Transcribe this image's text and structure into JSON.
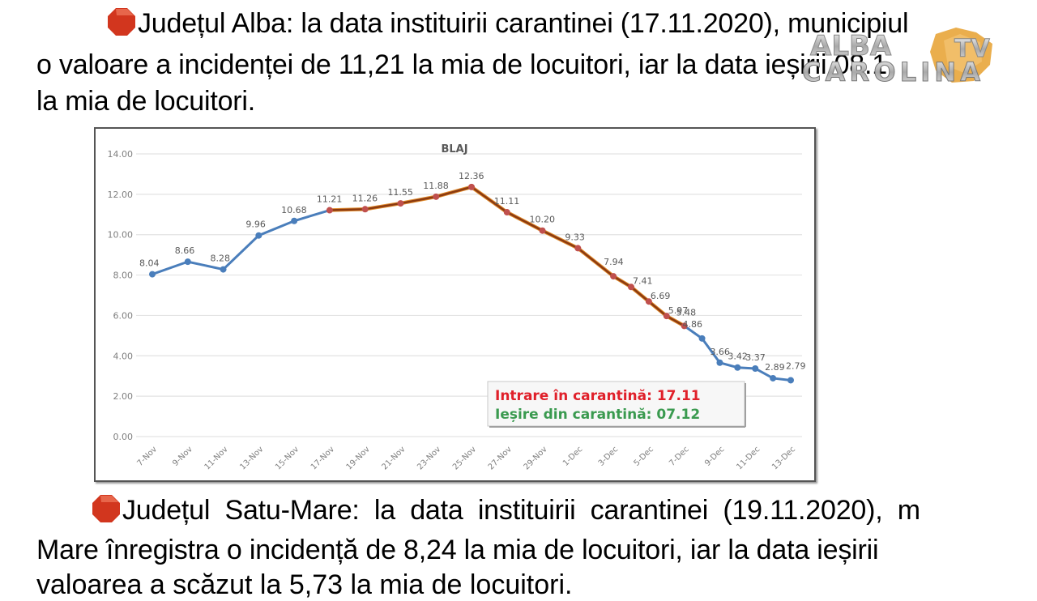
{
  "paragraph1": {
    "line1": "Județul Alba: la data instituirii carantinei (17.11.2020), municipiul",
    "line2": "o valoare a incidenței de 11,21 la mia de locuitori, iar la data ieșirii 08.1",
    "line3": "la mia de locuitori."
  },
  "paragraph2": {
    "line1": "Județul Satu-Mare: la data instituirii carantinei (19.11.2020), m",
    "line2": "Mare  înregistra o incidență de 8,24 la mia de locuitori, iar la data ieșirii",
    "line3": "valoarea a scăzut la 5,73 la mia de locuitori."
  },
  "watermark": {
    "line1": "ALBA",
    "line2": "CAROLINA",
    "badge": "TV"
  },
  "colors": {
    "bullet": "#d2361e",
    "series_outside": "#4a7ebb",
    "series_quarantine": "#8b3a10",
    "marker_quarantine": "#c0504d",
    "annotation_entry": "#e0202a",
    "annotation_exit": "#3a9a4f",
    "gridline": "#e3e3e3",
    "axis_text": "#7f7f7f"
  },
  "chart_data": {
    "type": "line",
    "title": "BLAJ",
    "xlabel": "",
    "ylabel": "",
    "ylim": [
      0,
      14
    ],
    "yticks": [
      "0.00",
      "2.00",
      "4.00",
      "6.00",
      "8.00",
      "10.00",
      "12.00",
      "14.00"
    ],
    "xticks": [
      "7-Nov",
      "9-Nov",
      "11-Nov",
      "13-Nov",
      "15-Nov",
      "17-Nov",
      "19-Nov",
      "21-Nov",
      "23-Nov",
      "25-Nov",
      "27-Nov",
      "29-Nov",
      "1-Dec",
      "3-Dec",
      "5-Dec",
      "7-Dec",
      "9-Dec",
      "11-Dec",
      "13-Dec"
    ],
    "grid": true,
    "legend": "none",
    "x": [
      "7-Nov",
      "9-Nov",
      "11-Nov",
      "13-Nov",
      "15-Nov",
      "17-Nov",
      "19-Nov",
      "21-Nov",
      "23-Nov",
      "25-Nov",
      "27-Nov",
      "29-Nov",
      "1-Dec",
      "3-Dec",
      "4-Dec",
      "5-Dec",
      "6-Dec",
      "7-Dec",
      "8-Dec",
      "9-Dec",
      "10-Dec",
      "11-Dec",
      "12-Dec",
      "13-Dec"
    ],
    "day_offset": [
      0,
      2,
      4,
      6,
      8,
      10,
      12,
      14,
      16,
      18,
      20,
      22,
      24,
      26,
      27,
      28,
      29,
      30,
      31,
      32,
      33,
      34,
      35,
      36
    ],
    "values": [
      8.04,
      8.66,
      8.28,
      9.96,
      10.68,
      11.21,
      11.26,
      11.55,
      11.88,
      12.36,
      11.11,
      10.2,
      9.33,
      7.94,
      7.41,
      6.69,
      5.97,
      5.48,
      4.86,
      3.66,
      3.42,
      3.37,
      2.89,
      2.79
    ],
    "labels": [
      "8.04",
      "8.66",
      "8.28",
      "9.96",
      "10.68",
      "11.21",
      "11.26",
      "11.55",
      "11.88",
      "12.36",
      "11.11",
      "10.20",
      "9.33",
      "7.94",
      "7.41",
      "6.69",
      "5.97",
      "5.48",
      "4.86",
      "3.66",
      "3.42",
      "3.37",
      "2.89",
      "2.79"
    ],
    "quarantine_segment": {
      "start": "17-Nov",
      "end": "7-Dec"
    },
    "annotation": {
      "entry": "Intrare în carantină: 17.11",
      "exit": "Ieșire din carantină: 07.12"
    }
  }
}
